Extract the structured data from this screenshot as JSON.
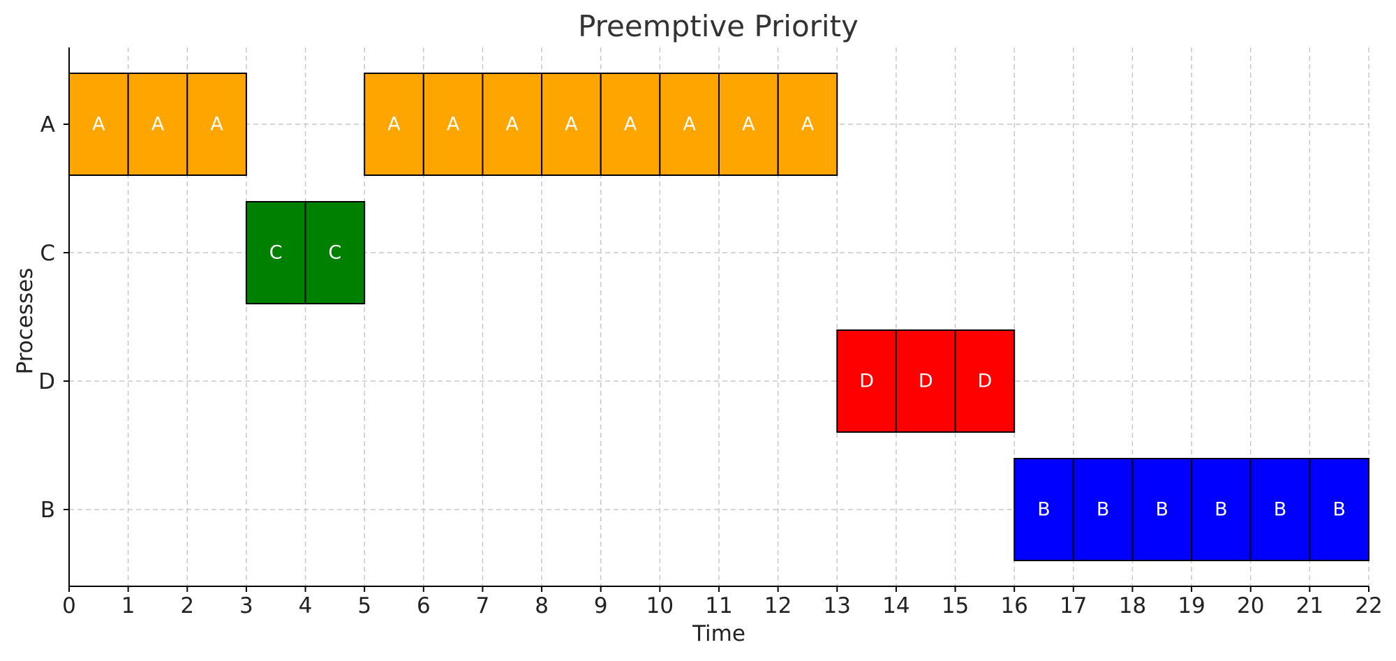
{
  "chart_data": {
    "type": "gantt",
    "title": "Preemptive Priority",
    "xlabel": "Time",
    "ylabel": "Processes",
    "xlim": [
      0,
      22
    ],
    "x_ticks": [
      0,
      1,
      2,
      3,
      4,
      5,
      6,
      7,
      8,
      9,
      10,
      11,
      12,
      13,
      14,
      15,
      16,
      17,
      18,
      19,
      20,
      21,
      22
    ],
    "categories": [
      "A",
      "C",
      "D",
      "B"
    ],
    "grid": true,
    "colors": {
      "A": "#ffa500",
      "C": "#008000",
      "D": "#ff0000",
      "B": "#0000ff"
    },
    "segments": [
      {
        "process": "A",
        "start": 0,
        "end": 1
      },
      {
        "process": "A",
        "start": 1,
        "end": 2
      },
      {
        "process": "A",
        "start": 2,
        "end": 3
      },
      {
        "process": "C",
        "start": 3,
        "end": 4
      },
      {
        "process": "C",
        "start": 4,
        "end": 5
      },
      {
        "process": "A",
        "start": 5,
        "end": 6
      },
      {
        "process": "A",
        "start": 6,
        "end": 7
      },
      {
        "process": "A",
        "start": 7,
        "end": 8
      },
      {
        "process": "A",
        "start": 8,
        "end": 9
      },
      {
        "process": "A",
        "start": 9,
        "end": 10
      },
      {
        "process": "A",
        "start": 10,
        "end": 11
      },
      {
        "process": "A",
        "start": 11,
        "end": 12
      },
      {
        "process": "A",
        "start": 12,
        "end": 13
      },
      {
        "process": "D",
        "start": 13,
        "end": 14
      },
      {
        "process": "D",
        "start": 14,
        "end": 15
      },
      {
        "process": "D",
        "start": 15,
        "end": 16
      },
      {
        "process": "B",
        "start": 16,
        "end": 17
      },
      {
        "process": "B",
        "start": 17,
        "end": 18
      },
      {
        "process": "B",
        "start": 18,
        "end": 19
      },
      {
        "process": "B",
        "start": 19,
        "end": 20
      },
      {
        "process": "B",
        "start": 20,
        "end": 21
      },
      {
        "process": "B",
        "start": 21,
        "end": 22
      }
    ]
  }
}
